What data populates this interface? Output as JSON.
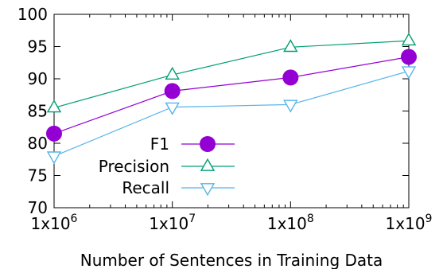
{
  "chart_data": {
    "type": "line",
    "title": "",
    "xlabel": "Number of Sentences in Training Data",
    "ylabel": "",
    "x_scale": "log10",
    "x": [
      1000000,
      10000000,
      100000000,
      1000000000
    ],
    "x_tick_values": [
      1000000,
      10000000,
      100000000,
      1000000000
    ],
    "x_tick_labels": [
      {
        "base": "1x10",
        "exp": "6"
      },
      {
        "base": "1x10",
        "exp": "7"
      },
      {
        "base": "1x10",
        "exp": "8"
      },
      {
        "base": "1x10",
        "exp": "9"
      }
    ],
    "ylim": [
      70,
      100
    ],
    "y_ticks": [
      70,
      75,
      80,
      85,
      90,
      95,
      100
    ],
    "grid": false,
    "legend_position": "bottom-left",
    "series": [
      {
        "name": "F1",
        "values": [
          81.5,
          88.1,
          90.2,
          93.4
        ],
        "color": "#9400d3",
        "marker": "filled-circle"
      },
      {
        "name": "Precision",
        "values": [
          85.5,
          90.6,
          94.9,
          95.9
        ],
        "color": "#009e73",
        "marker": "open-triangle-up"
      },
      {
        "name": "Recall",
        "values": [
          78.0,
          85.6,
          86.0,
          91.2
        ],
        "color": "#56b4e9",
        "marker": "open-triangle-down"
      }
    ]
  }
}
